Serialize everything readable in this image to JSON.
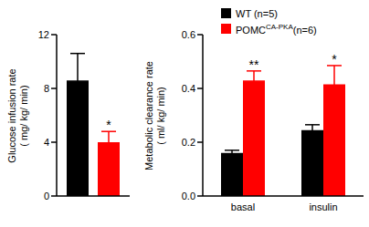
{
  "chart_data": [
    {
      "type": "bar",
      "ylabel": [
        "Glucose infusion rate",
        "( mg/ kg/ min)"
      ],
      "categories": [
        null
      ],
      "series": [
        {
          "color": "#000000",
          "values": [
            8.6
          ],
          "error": [
            2.0
          ]
        },
        {
          "color": "#ff0000",
          "values": [
            4.0
          ],
          "error": [
            0.8
          ],
          "annotations": [
            "*"
          ]
        }
      ],
      "ylim": [
        0,
        12
      ],
      "yticks": [
        0,
        4,
        8,
        12
      ],
      "tick_labels": "y"
    },
    {
      "type": "bar",
      "ylabel": [
        "Metabolic clearance rate",
        "( ml/ kg/ min)"
      ],
      "categories": [
        "basal",
        "insulin"
      ],
      "series": [
        {
          "name": "WT (n=5)",
          "color": "#000000",
          "values": [
            0.16,
            0.245
          ],
          "error": [
            0.01,
            0.02
          ]
        },
        {
          "name": "POMCCA-PKA(n=6)",
          "superscript": "CA-PKA",
          "color": "#ff0000",
          "values": [
            0.43,
            0.415
          ],
          "error": [
            0.035,
            0.07
          ],
          "annotations": [
            "**",
            "*"
          ]
        }
      ],
      "ylim": [
        0,
        0.6
      ],
      "yticks": [
        {
          "value": 0,
          "label": "0.0"
        },
        {
          "value": 0.2,
          "label": "0.2"
        },
        {
          "value": 0.4,
          "label": "0.4"
        },
        {
          "value": 0.6,
          "label": "0.6"
        }
      ],
      "legend": "top"
    }
  ]
}
